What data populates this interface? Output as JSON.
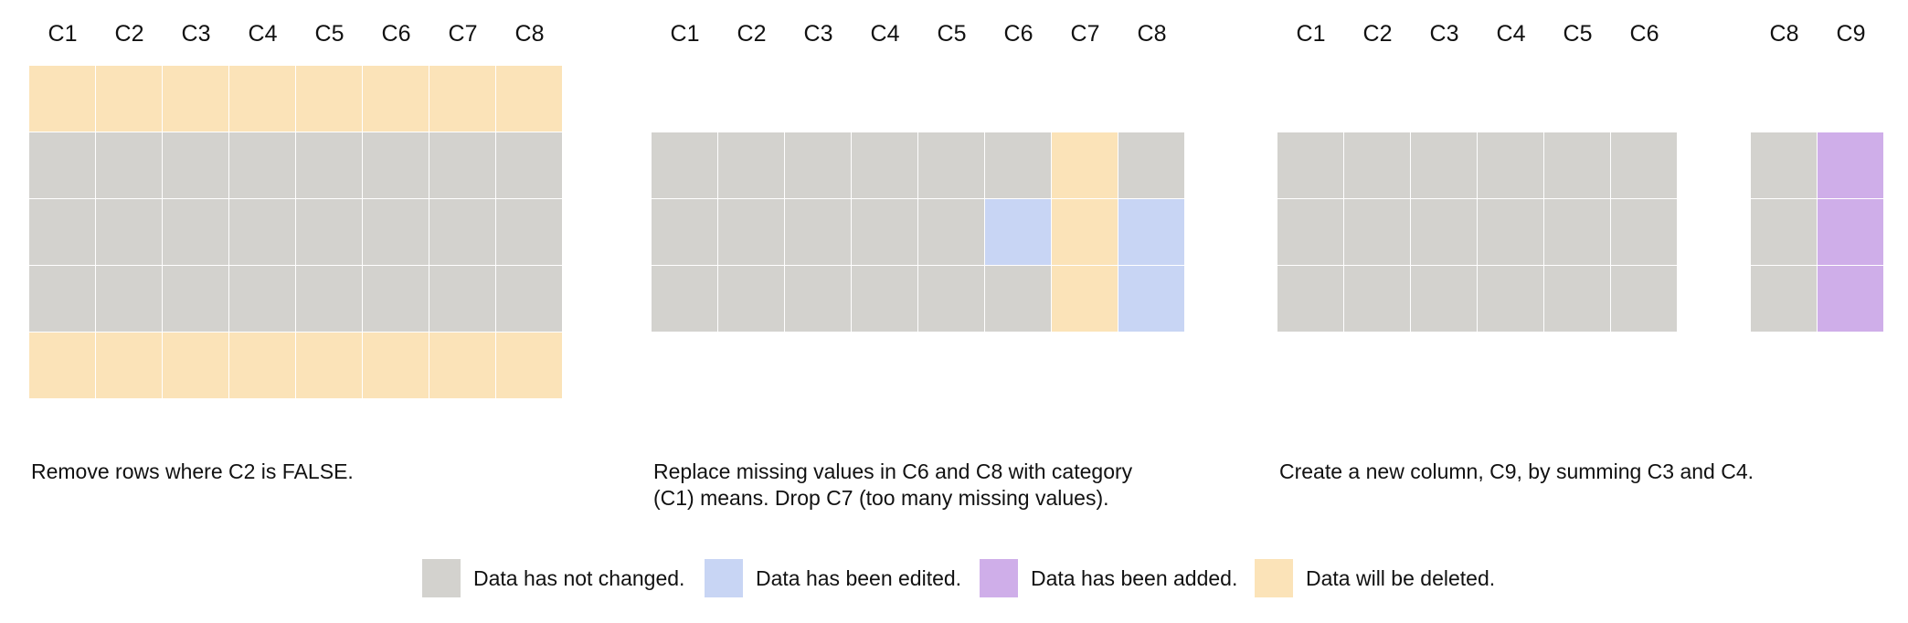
{
  "colors": {
    "unchanged": "#d3d2ce",
    "edited": "#c8d5f4",
    "added": "#cfaee9",
    "deleted": "#fbe3b8"
  },
  "panels": [
    {
      "headers": [
        "C1",
        "C2",
        "C3",
        "C4",
        "C5",
        "C6",
        "C7",
        "C8"
      ],
      "rows": [
        [
          "deleted",
          "deleted",
          "deleted",
          "deleted",
          "deleted",
          "deleted",
          "deleted",
          "deleted"
        ],
        [
          "unchanged",
          "unchanged",
          "unchanged",
          "unchanged",
          "unchanged",
          "unchanged",
          "unchanged",
          "unchanged"
        ],
        [
          "unchanged",
          "unchanged",
          "unchanged",
          "unchanged",
          "unchanged",
          "unchanged",
          "unchanged",
          "unchanged"
        ],
        [
          "unchanged",
          "unchanged",
          "unchanged",
          "unchanged",
          "unchanged",
          "unchanged",
          "unchanged",
          "unchanged"
        ],
        [
          "deleted",
          "deleted",
          "deleted",
          "deleted",
          "deleted",
          "deleted",
          "deleted",
          "deleted"
        ]
      ],
      "caption": "Remove rows where C2 is FALSE."
    },
    {
      "headers": [
        "C1",
        "C2",
        "C3",
        "C4",
        "C5",
        "C6",
        "C7",
        "C8"
      ],
      "rows": [
        [
          "unchanged",
          "unchanged",
          "unchanged",
          "unchanged",
          "unchanged",
          "unchanged",
          "deleted",
          "unchanged"
        ],
        [
          "unchanged",
          "unchanged",
          "unchanged",
          "unchanged",
          "unchanged",
          "edited",
          "deleted",
          "edited"
        ],
        [
          "unchanged",
          "unchanged",
          "unchanged",
          "unchanged",
          "unchanged",
          "unchanged",
          "deleted",
          "edited"
        ]
      ],
      "caption": "Replace missing values in C6 and C8 with category\n(C1) means. Drop C7 (too many missing values)."
    },
    {
      "headers": [
        "C1",
        "C2",
        "C3",
        "C4",
        "C5",
        "C6",
        "",
        "C8",
        "C9"
      ],
      "rows": [
        [
          "unchanged",
          "unchanged",
          "unchanged",
          "unchanged",
          "unchanged",
          "unchanged",
          "gap",
          "unchanged",
          "added"
        ],
        [
          "unchanged",
          "unchanged",
          "unchanged",
          "unchanged",
          "unchanged",
          "unchanged",
          "gap",
          "unchanged",
          "added"
        ],
        [
          "unchanged",
          "unchanged",
          "unchanged",
          "unchanged",
          "unchanged",
          "unchanged",
          "gap",
          "unchanged",
          "added"
        ]
      ],
      "caption": "Create a new column, C9, by summing C3 and C4."
    }
  ],
  "legend": [
    {
      "state": "unchanged",
      "label": "Data has not changed."
    },
    {
      "state": "edited",
      "label": "Data has been edited."
    },
    {
      "state": "added",
      "label": "Data has been added."
    },
    {
      "state": "deleted",
      "label": "Data will be deleted."
    }
  ]
}
